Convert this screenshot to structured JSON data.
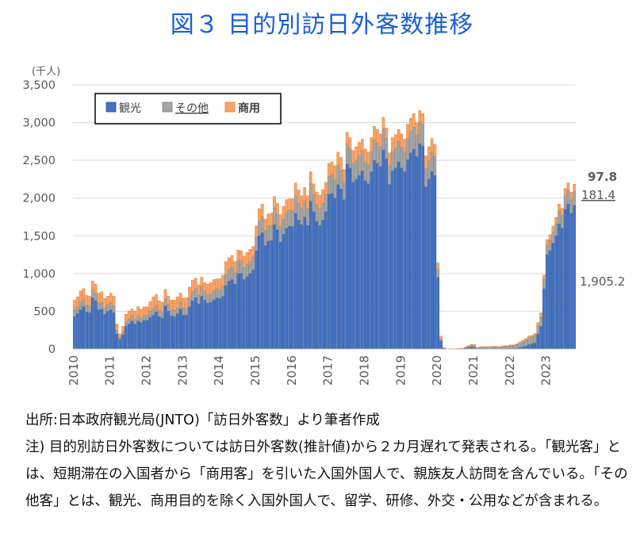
{
  "title": "図３ 目的別訪日外客数推移",
  "notes": {
    "source": "出所:日本政府観光局(JNTO)「訪日外客数」より筆者作成",
    "note": "注) 目的別訪日外客数については訪日外客数(推計値)から２カ月遅れて発表される。「観光客」とは、短期滞在の入国者から「商用客」を引いた入国外国人で、親族友人訪問を含んでいる。「その他客」とは、観光、商用目的を除く入国外国人で、留学、研修、外交・公用などが含まれる。"
  },
  "chart_data": {
    "type": "bar",
    "stacked": true,
    "unit_label": "(千人)",
    "ylim": [
      0,
      3500
    ],
    "yticks": [
      0,
      500,
      1000,
      1500,
      2000,
      2500,
      3000,
      3500
    ],
    "ytick_labels": [
      "0",
      "500",
      "1,000",
      "1,500",
      "2,000",
      "2,500",
      "3,000",
      "3,500"
    ],
    "xtick_labels": [
      "2010",
      "2011",
      "2012",
      "2013",
      "2014",
      "2015",
      "2016",
      "2017",
      "2018",
      "2019",
      "2020",
      "2021",
      "2022",
      "2023"
    ],
    "grid": true,
    "legend_position": "top-left",
    "colors": {
      "観光": "#4472c4",
      "その他": "#a5a5a5",
      "商用": "#f4a56e",
      "商用_edge": "#ed7d31",
      "観光_edge": "#2f5597",
      "その他_edge": "#7f7f7f"
    },
    "series_names": [
      "観光",
      "その他",
      "商用"
    ],
    "annotations": {
      "商用": "97.8",
      "その他": "181.4",
      "観光": "1,905.2"
    },
    "x": [
      "2010-01",
      "2010-02",
      "2010-03",
      "2010-04",
      "2010-05",
      "2010-06",
      "2010-07",
      "2010-08",
      "2010-09",
      "2010-10",
      "2010-11",
      "2010-12",
      "2011-01",
      "2011-02",
      "2011-03",
      "2011-04",
      "2011-05",
      "2011-06",
      "2011-07",
      "2011-08",
      "2011-09",
      "2011-10",
      "2011-11",
      "2011-12",
      "2012-01",
      "2012-02",
      "2012-03",
      "2012-04",
      "2012-05",
      "2012-06",
      "2012-07",
      "2012-08",
      "2012-09",
      "2012-10",
      "2012-11",
      "2012-12",
      "2013-01",
      "2013-02",
      "2013-03",
      "2013-04",
      "2013-05",
      "2013-06",
      "2013-07",
      "2013-08",
      "2013-09",
      "2013-10",
      "2013-11",
      "2013-12",
      "2014-01",
      "2014-02",
      "2014-03",
      "2014-04",
      "2014-05",
      "2014-06",
      "2014-07",
      "2014-08",
      "2014-09",
      "2014-10",
      "2014-11",
      "2014-12",
      "2015-01",
      "2015-02",
      "2015-03",
      "2015-04",
      "2015-05",
      "2015-06",
      "2015-07",
      "2015-08",
      "2015-09",
      "2015-10",
      "2015-11",
      "2015-12",
      "2016-01",
      "2016-02",
      "2016-03",
      "2016-04",
      "2016-05",
      "2016-06",
      "2016-07",
      "2016-08",
      "2016-09",
      "2016-10",
      "2016-11",
      "2016-12",
      "2017-01",
      "2017-02",
      "2017-03",
      "2017-04",
      "2017-05",
      "2017-06",
      "2017-07",
      "2017-08",
      "2017-09",
      "2017-10",
      "2017-11",
      "2017-12",
      "2018-01",
      "2018-02",
      "2018-03",
      "2018-04",
      "2018-05",
      "2018-06",
      "2018-07",
      "2018-08",
      "2018-09",
      "2018-10",
      "2018-11",
      "2018-12",
      "2019-01",
      "2019-02",
      "2019-03",
      "2019-04",
      "2019-05",
      "2019-06",
      "2019-07",
      "2019-08",
      "2019-09",
      "2019-10",
      "2019-11",
      "2019-12",
      "2020-01",
      "2020-02",
      "2020-03",
      "2020-04",
      "2020-05",
      "2020-06",
      "2020-07",
      "2020-08",
      "2020-09",
      "2020-10",
      "2020-11",
      "2020-12",
      "2021-01",
      "2021-02",
      "2021-03",
      "2021-04",
      "2021-05",
      "2021-06",
      "2021-07",
      "2021-08",
      "2021-09",
      "2021-10",
      "2021-11",
      "2021-12",
      "2022-01",
      "2022-02",
      "2022-03",
      "2022-04",
      "2022-05",
      "2022-06",
      "2022-07",
      "2022-08",
      "2022-09",
      "2022-10",
      "2022-11",
      "2022-12",
      "2023-01",
      "2023-02",
      "2023-03",
      "2023-04",
      "2023-05",
      "2023-06",
      "2023-07",
      "2023-08",
      "2023-09",
      "2023-10"
    ],
    "series": [
      {
        "name": "観光",
        "values": [
          430,
          470,
          520,
          560,
          490,
          480,
          680,
          640,
          520,
          530,
          460,
          500,
          520,
          480,
          200,
          130,
          190,
          300,
          330,
          370,
          330,
          370,
          350,
          380,
          380,
          420,
          450,
          490,
          430,
          410,
          570,
          500,
          440,
          430,
          470,
          530,
          450,
          450,
          560,
          640,
          680,
          600,
          700,
          650,
          610,
          620,
          650,
          680,
          670,
          700,
          840,
          900,
          920,
          860,
          1000,
          1000,
          920,
          960,
          1000,
          1050,
          1300,
          1500,
          1540,
          1370,
          1430,
          1440,
          1650,
          1580,
          1420,
          1520,
          1600,
          1630,
          1620,
          1800,
          1710,
          1650,
          1750,
          1640,
          1960,
          1820,
          1690,
          1640,
          1710,
          1820,
          2050,
          2060,
          2000,
          2180,
          2120,
          1980,
          2450,
          2400,
          2210,
          2250,
          2300,
          2360,
          2230,
          2190,
          2350,
          2500,
          2460,
          2420,
          2640,
          2520,
          2180,
          2360,
          2400,
          2480,
          2400,
          2350,
          2510,
          2600,
          2650,
          2550,
          2720,
          2690,
          2150,
          2250,
          2350,
          2300,
          950,
          110,
          10,
          1,
          1,
          1,
          2,
          3,
          4,
          10,
          20,
          30,
          20,
          5,
          6,
          5,
          5,
          5,
          6,
          6,
          5,
          6,
          7,
          8,
          8,
          8,
          10,
          20,
          30,
          40,
          60,
          70,
          80,
          200,
          300,
          800,
          1250,
          1300,
          1400,
          1500,
          1660,
          1600,
          1850,
          1920,
          1800,
          1905.2
        ]
      },
      {
        "name": "その他",
        "values": [
          90,
          90,
          100,
          100,
          90,
          90,
          110,
          100,
          90,
          90,
          80,
          90,
          90,
          90,
          50,
          30,
          40,
          60,
          70,
          70,
          60,
          70,
          60,
          70,
          70,
          80,
          90,
          90,
          80,
          80,
          100,
          90,
          80,
          80,
          80,
          90,
          90,
          90,
          110,
          120,
          120,
          110,
          130,
          120,
          110,
          110,
          120,
          120,
          120,
          130,
          150,
          160,
          160,
          150,
          170,
          170,
          160,
          160,
          160,
          170,
          180,
          200,
          210,
          200,
          200,
          200,
          220,
          210,
          200,
          200,
          210,
          210,
          210,
          230,
          220,
          220,
          220,
          220,
          240,
          230,
          220,
          220,
          220,
          230,
          240,
          250,
          240,
          250,
          240,
          230,
          270,
          260,
          250,
          250,
          260,
          260,
          250,
          250,
          260,
          270,
          270,
          260,
          280,
          270,
          250,
          260,
          260,
          270,
          270,
          260,
          280,
          280,
          290,
          280,
          290,
          290,
          240,
          250,
          260,
          250,
          110,
          20,
          5,
          1,
          1,
          1,
          1,
          2,
          3,
          10,
          15,
          20,
          30,
          10,
          20,
          20,
          20,
          20,
          25,
          25,
          20,
          25,
          30,
          30,
          40,
          40,
          50,
          60,
          70,
          80,
          90,
          90,
          100,
          110,
          120,
          120,
          130,
          140,
          150,
          160,
          170,
          175,
          180,
          185,
          180,
          181.4
        ]
      },
      {
        "name": "商用",
        "values": [
          130,
          130,
          150,
          140,
          130,
          130,
          110,
          120,
          130,
          140,
          130,
          110,
          130,
          130,
          80,
          40,
          70,
          100,
          100,
          90,
          110,
          120,
          120,
          110,
          110,
          130,
          150,
          140,
          130,
          130,
          120,
          110,
          130,
          140,
          140,
          120,
          130,
          140,
          150,
          150,
          140,
          140,
          120,
          110,
          140,
          150,
          150,
          130,
          140,
          150,
          170,
          150,
          160,
          150,
          140,
          130,
          150,
          160,
          160,
          140,
          150,
          160,
          170,
          150,
          160,
          160,
          150,
          140,
          160,
          170,
          170,
          150,
          160,
          170,
          180,
          160,
          170,
          170,
          150,
          140,
          170,
          180,
          180,
          160,
          170,
          170,
          190,
          180,
          180,
          170,
          150,
          140,
          170,
          180,
          180,
          160,
          170,
          170,
          190,
          180,
          180,
          170,
          150,
          140,
          170,
          180,
          180,
          160,
          180,
          170,
          190,
          180,
          180,
          170,
          150,
          140,
          170,
          180,
          180,
          160,
          80,
          40,
          3,
          1,
          1,
          1,
          1,
          1,
          2,
          5,
          8,
          10,
          8,
          3,
          5,
          5,
          5,
          5,
          5,
          5,
          5,
          6,
          6,
          6,
          6,
          6,
          8,
          10,
          15,
          18,
          20,
          20,
          25,
          40,
          60,
          60,
          70,
          75,
          80,
          85,
          90,
          90,
          95,
          95,
          97,
          97.8
        ]
      }
    ]
  }
}
